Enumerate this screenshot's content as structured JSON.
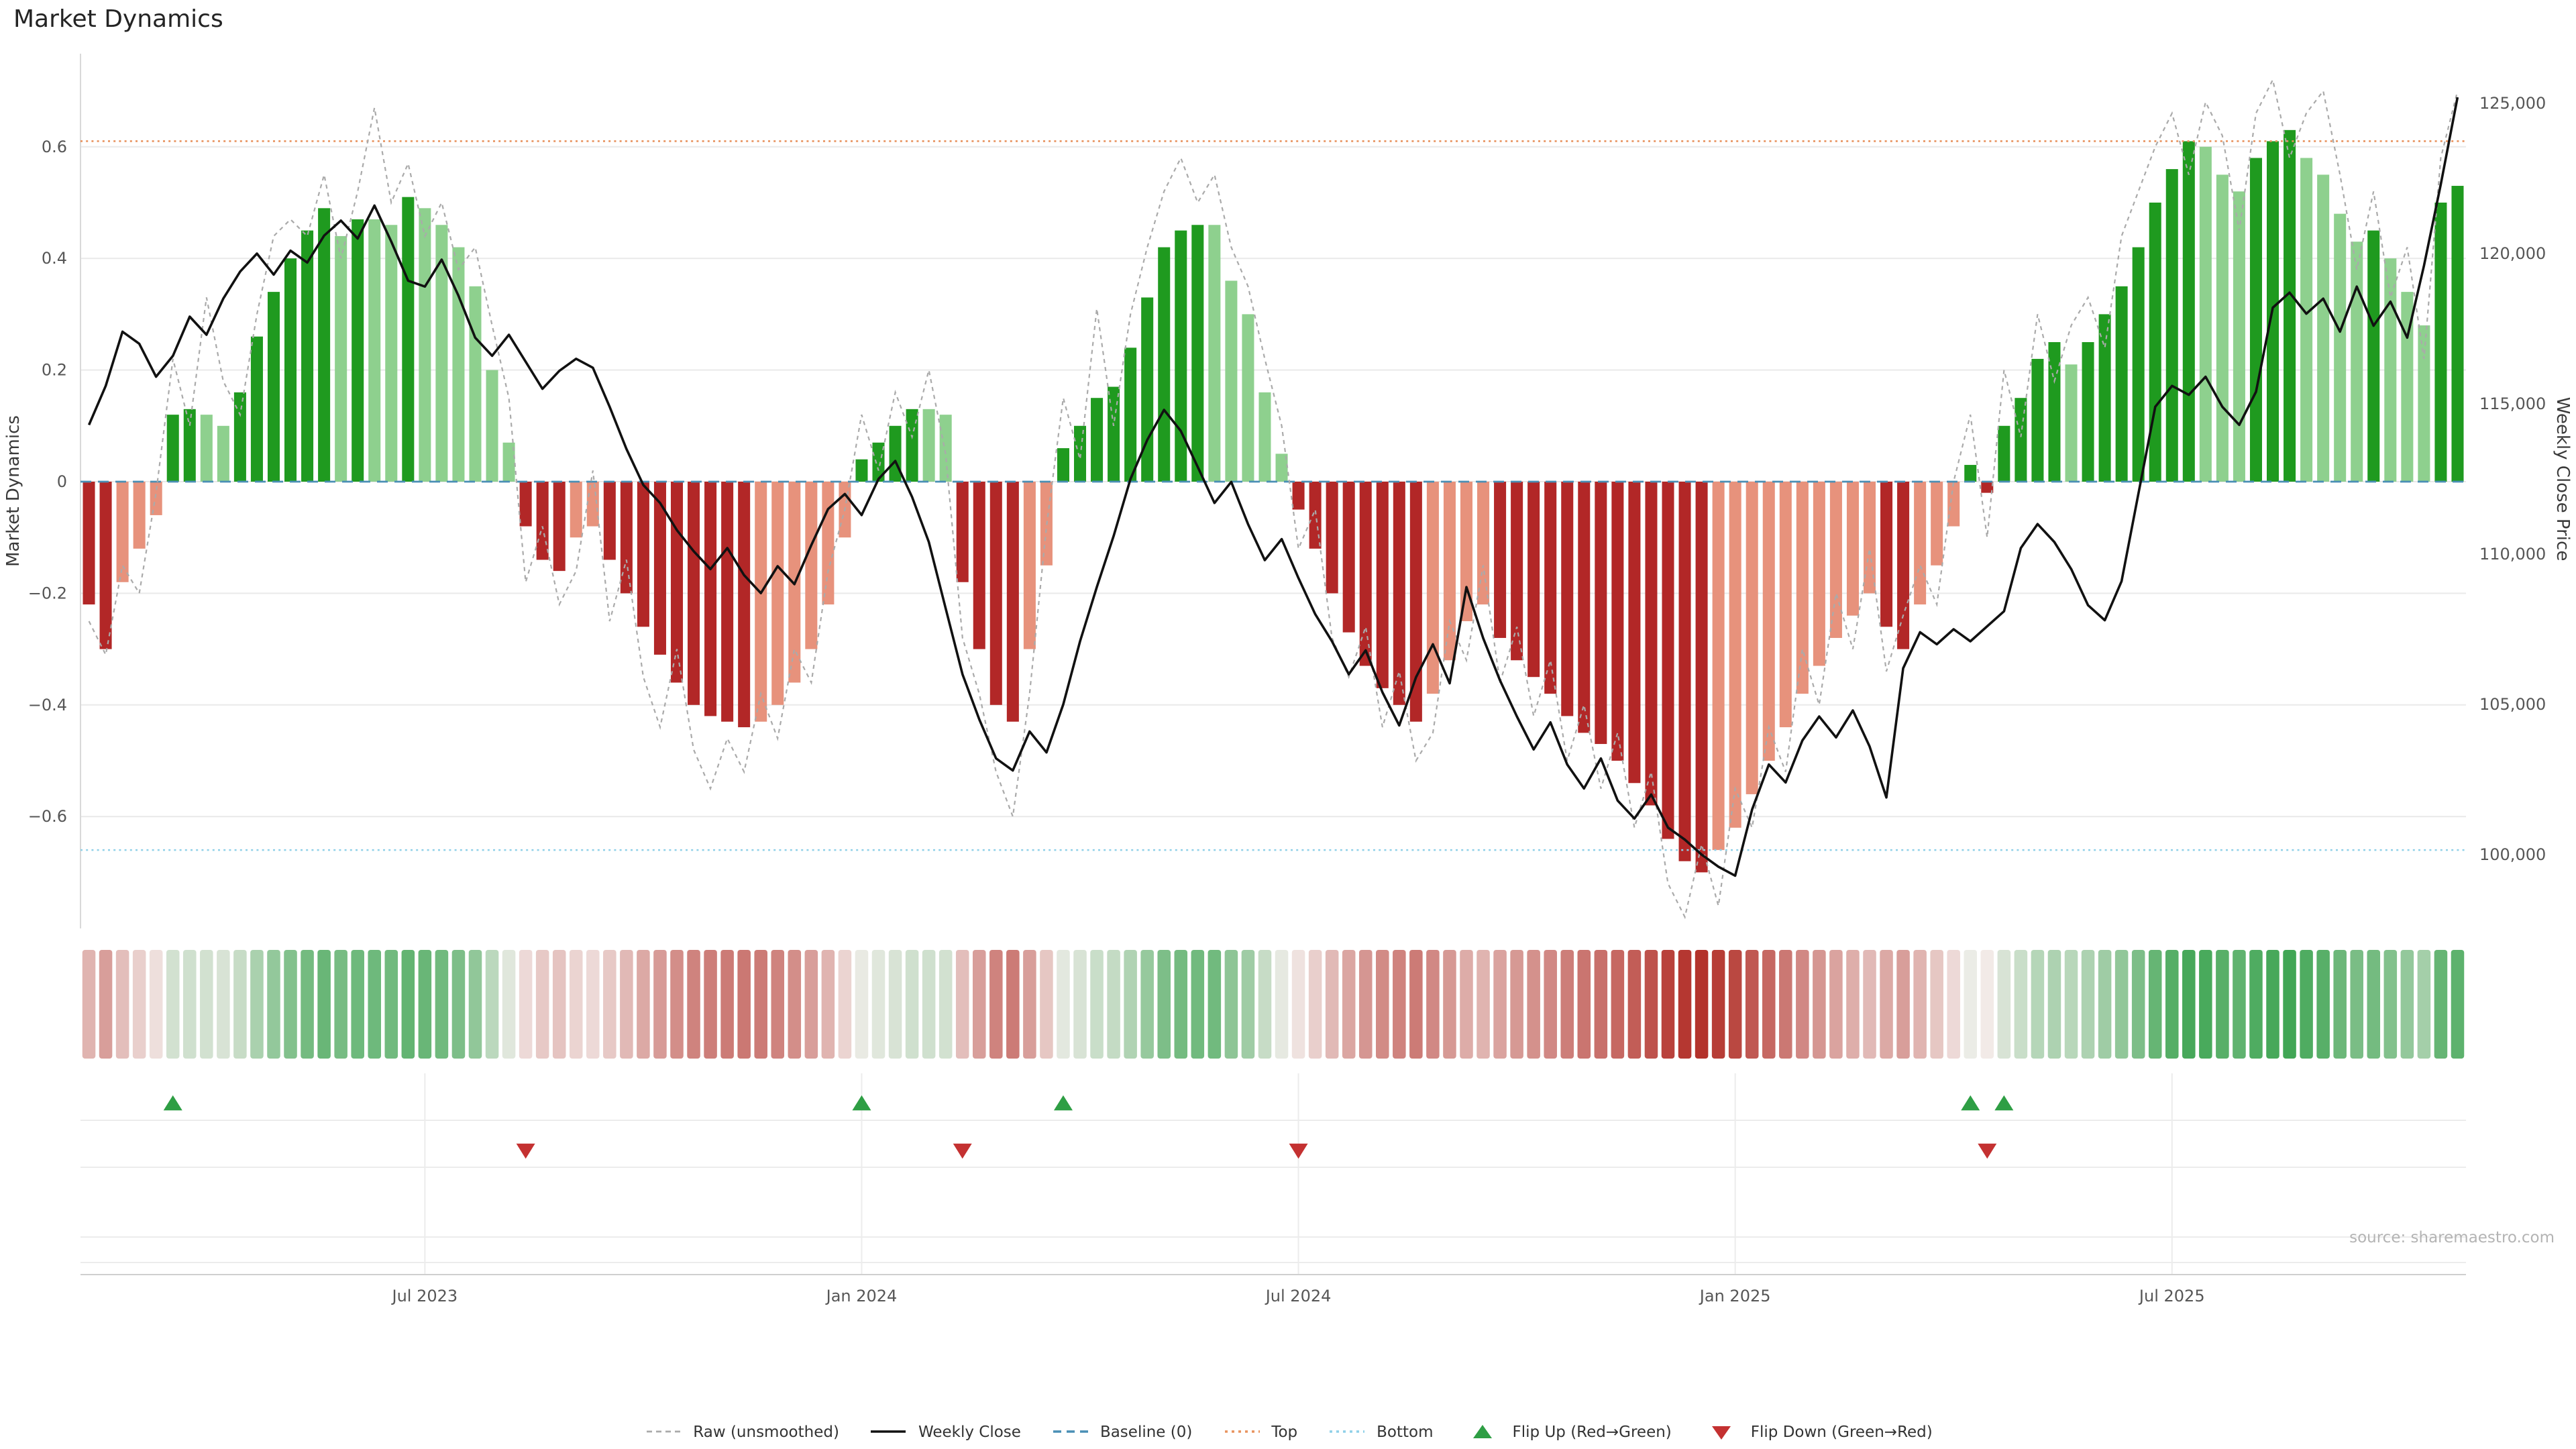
{
  "title": "Market Dynamics",
  "source_note": "source: sharemaestro.com",
  "axes": {
    "left_label": "Market Dynamics",
    "right_label": "Weekly Close Price"
  },
  "colors": {
    "bar_pos_dark": "#1f9a1f",
    "bar_pos_light": "#8ed08e",
    "bar_neg_dark": "#b22727",
    "bar_neg_light": "#e7927c",
    "raw_line": "#aaaaaa",
    "close_line": "#111111",
    "baseline": "#4a8fb5",
    "top_line": "#e8935f",
    "bottom_line": "#8fd0e8",
    "flip_up": "#2e9e44",
    "flip_down": "#c43131",
    "grid": "#e9e9e9",
    "spine": "#d9d9d9",
    "heat_negative": "#b3322b",
    "heat_neutral": "#f4efed",
    "heat_positive": "#2d9e44"
  },
  "legend": [
    {
      "key": "raw",
      "label": "Raw (unsmoothed)",
      "swatch": "line",
      "dash": "4,3",
      "color": "#aaaaaa",
      "width": 1.4
    },
    {
      "key": "weekly-close",
      "label": "Weekly Close",
      "swatch": "line",
      "dash": "",
      "color": "#111111",
      "width": 1.8
    },
    {
      "key": "baseline",
      "label": "Baseline (0)",
      "swatch": "line",
      "dash": "6,4",
      "color": "#4a8fb5",
      "width": 1.8
    },
    {
      "key": "top",
      "label": "Top",
      "swatch": "line",
      "dash": "2,3",
      "color": "#e8935f",
      "width": 1.8
    },
    {
      "key": "bottom",
      "label": "Bottom",
      "swatch": "line",
      "dash": "2,3",
      "color": "#8fd0e8",
      "width": 1.8
    },
    {
      "key": "flip-up",
      "label": "Flip Up (Red→Green)",
      "swatch": "triangle-up",
      "color": "#2e9e44"
    },
    {
      "key": "flip-down",
      "label": "Flip Down (Green→Red)",
      "swatch": "triangle-down",
      "color": "#c43131"
    }
  ],
  "chart_data": {
    "type": "bar",
    "frequency": "weekly",
    "n_points": 142,
    "title": "Market Dynamics",
    "left_axis": {
      "label": "Market Dynamics",
      "range": [
        -0.8,
        0.77
      ],
      "ticks": [
        0.6,
        0.4,
        0.2,
        0,
        -0.2,
        -0.4,
        -0.6
      ]
    },
    "right_axis": {
      "label": "Weekly Close Price",
      "range": [
        97500,
        126600
      ],
      "ticks": [
        100000,
        105000,
        110000,
        115000,
        120000,
        125000
      ]
    },
    "x_ticks": [
      {
        "week": 20,
        "label": "Jul 2023"
      },
      {
        "week": 46,
        "label": "Jan 2024"
      },
      {
        "week": 72,
        "label": "Jul 2024"
      },
      {
        "week": 98,
        "label": "Jan 2025"
      },
      {
        "week": 124,
        "label": "Jul 2025"
      }
    ],
    "top_line": 0.61,
    "bottom_line": -0.66,
    "baseline": 0,
    "flip_up_weeks": [
      5,
      46,
      58,
      112,
      114
    ],
    "flip_down_weeks": [
      26,
      52,
      72,
      113
    ],
    "series": [
      {
        "name": "Market Dynamics (smoothed bars)",
        "type": "bar",
        "axis": "left",
        "values": [
          -0.22,
          -0.3,
          -0.18,
          -0.12,
          -0.06,
          0.12,
          0.13,
          0.12,
          0.1,
          0.16,
          0.26,
          0.34,
          0.4,
          0.45,
          0.49,
          0.44,
          0.47,
          0.47,
          0.46,
          0.51,
          0.49,
          0.46,
          0.42,
          0.35,
          0.2,
          0.07,
          -0.08,
          -0.14,
          -0.16,
          -0.1,
          -0.08,
          -0.14,
          -0.2,
          -0.26,
          -0.31,
          -0.36,
          -0.4,
          -0.42,
          -0.43,
          -0.44,
          -0.43,
          -0.4,
          -0.36,
          -0.3,
          -0.22,
          -0.1,
          0.04,
          0.07,
          0.1,
          0.13,
          0.13,
          0.12,
          -0.18,
          -0.3,
          -0.4,
          -0.43,
          -0.3,
          -0.15,
          0.06,
          0.1,
          0.15,
          0.17,
          0.24,
          0.33,
          0.42,
          0.45,
          0.46,
          0.46,
          0.36,
          0.3,
          0.16,
          0.05,
          -0.05,
          -0.12,
          -0.2,
          -0.27,
          -0.33,
          -0.37,
          -0.4,
          -0.43,
          -0.38,
          -0.32,
          -0.25,
          -0.22,
          -0.28,
          -0.32,
          -0.35,
          -0.38,
          -0.42,
          -0.45,
          -0.47,
          -0.5,
          -0.54,
          -0.58,
          -0.64,
          -0.68,
          -0.7,
          -0.66,
          -0.62,
          -0.56,
          -0.5,
          -0.44,
          -0.38,
          -0.33,
          -0.28,
          -0.24,
          -0.2,
          -0.26,
          -0.3,
          -0.22,
          -0.15,
          -0.08,
          0.03,
          -0.02,
          0.1,
          0.15,
          0.22,
          0.25,
          0.21,
          0.25,
          0.3,
          0.35,
          0.42,
          0.5,
          0.56,
          0.61,
          0.6,
          0.55,
          0.52,
          0.58,
          0.61,
          0.63,
          0.58,
          0.55,
          0.48,
          0.43,
          0.45,
          0.4,
          0.34,
          0.28,
          0.5,
          0.53
        ]
      },
      {
        "name": "Raw (unsmoothed)",
        "type": "line",
        "axis": "left",
        "values": [
          -0.25,
          -0.31,
          -0.15,
          -0.2,
          -0.02,
          0.22,
          0.1,
          0.33,
          0.18,
          0.12,
          0.3,
          0.44,
          0.47,
          0.44,
          0.55,
          0.4,
          0.52,
          0.67,
          0.5,
          0.57,
          0.44,
          0.5,
          0.38,
          0.42,
          0.28,
          0.15,
          -0.18,
          -0.08,
          -0.22,
          -0.16,
          0.02,
          -0.25,
          -0.14,
          -0.35,
          -0.44,
          -0.3,
          -0.48,
          -0.55,
          -0.46,
          -0.52,
          -0.38,
          -0.46,
          -0.3,
          -0.36,
          -0.16,
          -0.05,
          0.12,
          0.02,
          0.16,
          0.08,
          0.2,
          0.05,
          -0.28,
          -0.38,
          -0.52,
          -0.6,
          -0.38,
          -0.08,
          0.15,
          0.04,
          0.31,
          0.1,
          0.3,
          0.42,
          0.52,
          0.58,
          0.5,
          0.55,
          0.42,
          0.35,
          0.22,
          0.1,
          -0.12,
          -0.05,
          -0.28,
          -0.35,
          -0.26,
          -0.44,
          -0.34,
          -0.5,
          -0.45,
          -0.25,
          -0.32,
          -0.15,
          -0.36,
          -0.26,
          -0.42,
          -0.32,
          -0.5,
          -0.4,
          -0.55,
          -0.45,
          -0.62,
          -0.52,
          -0.72,
          -0.78,
          -0.65,
          -0.76,
          -0.55,
          -0.62,
          -0.44,
          -0.52,
          -0.3,
          -0.4,
          -0.2,
          -0.3,
          -0.12,
          -0.34,
          -0.24,
          -0.15,
          -0.22,
          0,
          0.12,
          -0.1,
          0.2,
          0.08,
          0.3,
          0.18,
          0.28,
          0.33,
          0.24,
          0.44,
          0.52,
          0.6,
          0.66,
          0.55,
          0.68,
          0.62,
          0.45,
          0.66,
          0.72,
          0.58,
          0.66,
          0.7,
          0.55,
          0.38,
          0.52,
          0.33,
          0.42,
          0.22,
          0.58,
          0.7
        ]
      },
      {
        "name": "Weekly Close",
        "type": "line",
        "axis": "right",
        "values": [
          114300,
          115600,
          117400,
          117000,
          115900,
          116600,
          117900,
          117300,
          118500,
          119400,
          120000,
          119300,
          120100,
          119700,
          120600,
          121100,
          120500,
          121600,
          120400,
          119100,
          118900,
          119800,
          118600,
          117200,
          116600,
          117300,
          116400,
          115500,
          116100,
          116500,
          116200,
          114900,
          113500,
          112300,
          111700,
          110800,
          110100,
          109500,
          110200,
          109300,
          108700,
          109600,
          109000,
          110300,
          111500,
          112000,
          111300,
          112500,
          113100,
          111900,
          110400,
          108200,
          106000,
          104500,
          103200,
          102800,
          104100,
          103400,
          105000,
          107100,
          108900,
          110600,
          112500,
          113800,
          114800,
          114100,
          112900,
          111700,
          112400,
          111000,
          109800,
          110500,
          109200,
          108000,
          107100,
          106000,
          106800,
          105400,
          104300,
          105900,
          107000,
          105700,
          108900,
          107200,
          105800,
          104600,
          103500,
          104400,
          103000,
          102200,
          103200,
          101800,
          101200,
          102000,
          100900,
          100500,
          100000,
          99600,
          99300,
          101500,
          103000,
          102400,
          103800,
          104600,
          103900,
          104800,
          103600,
          101900,
          106200,
          107400,
          107000,
          107500,
          107100,
          107600,
          108100,
          110200,
          111000,
          110400,
          109500,
          108300,
          107800,
          109100,
          112000,
          114900,
          115600,
          115300,
          115900,
          114900,
          114300,
          115400,
          118200,
          118700,
          118000,
          118500,
          117400,
          118900,
          117600,
          118400,
          117200,
          119600,
          122300,
          125200
        ]
      }
    ]
  }
}
